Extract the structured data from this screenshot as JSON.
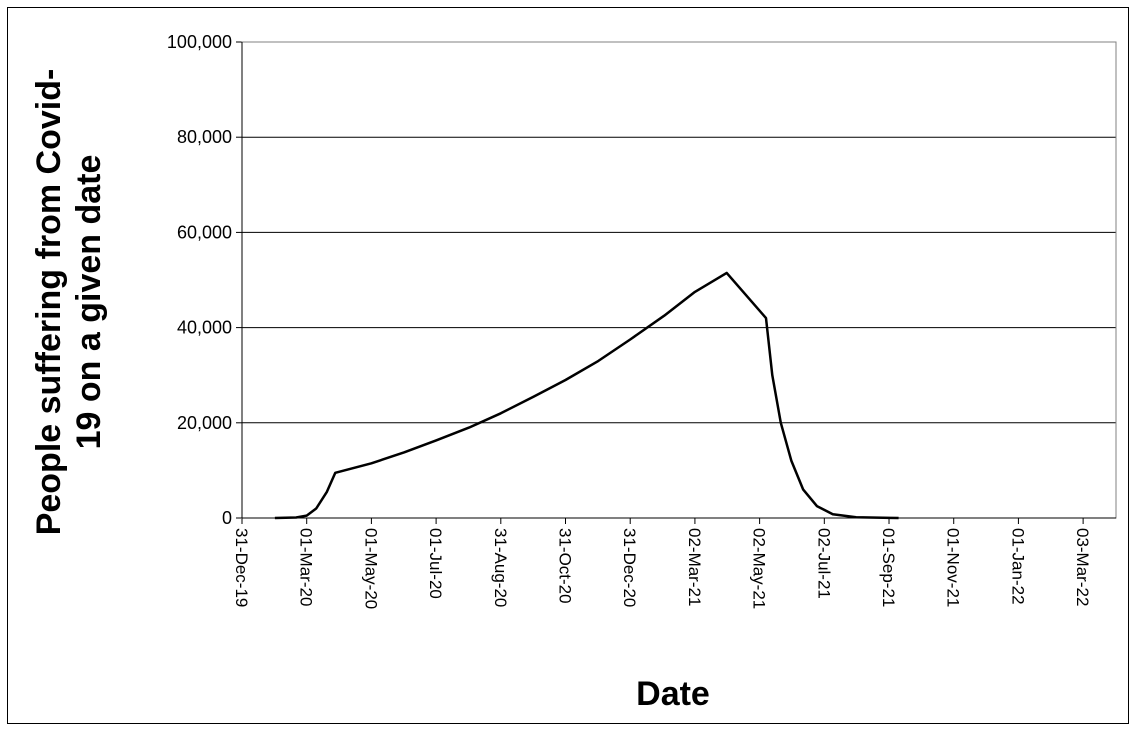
{
  "chart_data": {
    "type": "line",
    "title": "",
    "xlabel": "Date",
    "ylabel_lines": [
      "People suffering from Covid-",
      "19 on a given date"
    ],
    "ylim": [
      0,
      100000
    ],
    "yticks": [
      {
        "value": 0,
        "label": "0"
      },
      {
        "value": 20000,
        "label": "20,000"
      },
      {
        "value": 40000,
        "label": "40,000"
      },
      {
        "value": 60000,
        "label": "60,000"
      },
      {
        "value": 80000,
        "label": "80,000"
      },
      {
        "value": 100000,
        "label": "100,000"
      }
    ],
    "xlim": [
      "2019-12-31",
      "2022-04-03"
    ],
    "xticks": [
      {
        "date": "2019-12-31",
        "label": "31-Dec-19"
      },
      {
        "date": "2020-03-01",
        "label": "01-Mar-20"
      },
      {
        "date": "2020-05-01",
        "label": "01-May-20"
      },
      {
        "date": "2020-07-01",
        "label": "01-Jul-20"
      },
      {
        "date": "2020-08-31",
        "label": "31-Aug-20"
      },
      {
        "date": "2020-10-31",
        "label": "31-Oct-20"
      },
      {
        "date": "2020-12-31",
        "label": "31-Dec-20"
      },
      {
        "date": "2021-03-02",
        "label": "02-Mar-21"
      },
      {
        "date": "2021-05-02",
        "label": "02-May-21"
      },
      {
        "date": "2021-07-02",
        "label": "02-Jul-21"
      },
      {
        "date": "2021-09-01",
        "label": "01-Sep-21"
      },
      {
        "date": "2021-11-01",
        "label": "01-Nov-21"
      },
      {
        "date": "2022-01-01",
        "label": "01-Jan-22"
      },
      {
        "date": "2022-03-03",
        "label": "03-Mar-22"
      }
    ],
    "grid": "horizontal",
    "legend": "none",
    "series": [
      {
        "color": "#000000",
        "points": [
          {
            "x": "2020-01-31",
            "y": 0
          },
          {
            "x": "2020-02-20",
            "y": 100
          },
          {
            "x": "2020-03-01",
            "y": 500
          },
          {
            "x": "2020-03-10",
            "y": 2000
          },
          {
            "x": "2020-03-20",
            "y": 5500
          },
          {
            "x": "2020-03-28",
            "y": 9500
          },
          {
            "x": "2020-05-01",
            "y": 11500
          },
          {
            "x": "2020-06-01",
            "y": 13800
          },
          {
            "x": "2020-07-01",
            "y": 16300
          },
          {
            "x": "2020-08-01",
            "y": 19000
          },
          {
            "x": "2020-08-31",
            "y": 22000
          },
          {
            "x": "2020-10-01",
            "y": 25500
          },
          {
            "x": "2020-10-31",
            "y": 29000
          },
          {
            "x": "2020-12-01",
            "y": 33000
          },
          {
            "x": "2020-12-31",
            "y": 37500
          },
          {
            "x": "2021-02-01",
            "y": 42500
          },
          {
            "x": "2021-03-02",
            "y": 47500
          },
          {
            "x": "2021-04-01",
            "y": 51500
          },
          {
            "x": "2021-05-08",
            "y": 42000
          },
          {
            "x": "2021-05-14",
            "y": 30000
          },
          {
            "x": "2021-05-22",
            "y": 20000
          },
          {
            "x": "2021-06-01",
            "y": 12000
          },
          {
            "x": "2021-06-12",
            "y": 6000
          },
          {
            "x": "2021-06-25",
            "y": 2500
          },
          {
            "x": "2021-07-10",
            "y": 800
          },
          {
            "x": "2021-08-01",
            "y": 150
          },
          {
            "x": "2021-09-10",
            "y": 0
          }
        ]
      }
    ]
  }
}
